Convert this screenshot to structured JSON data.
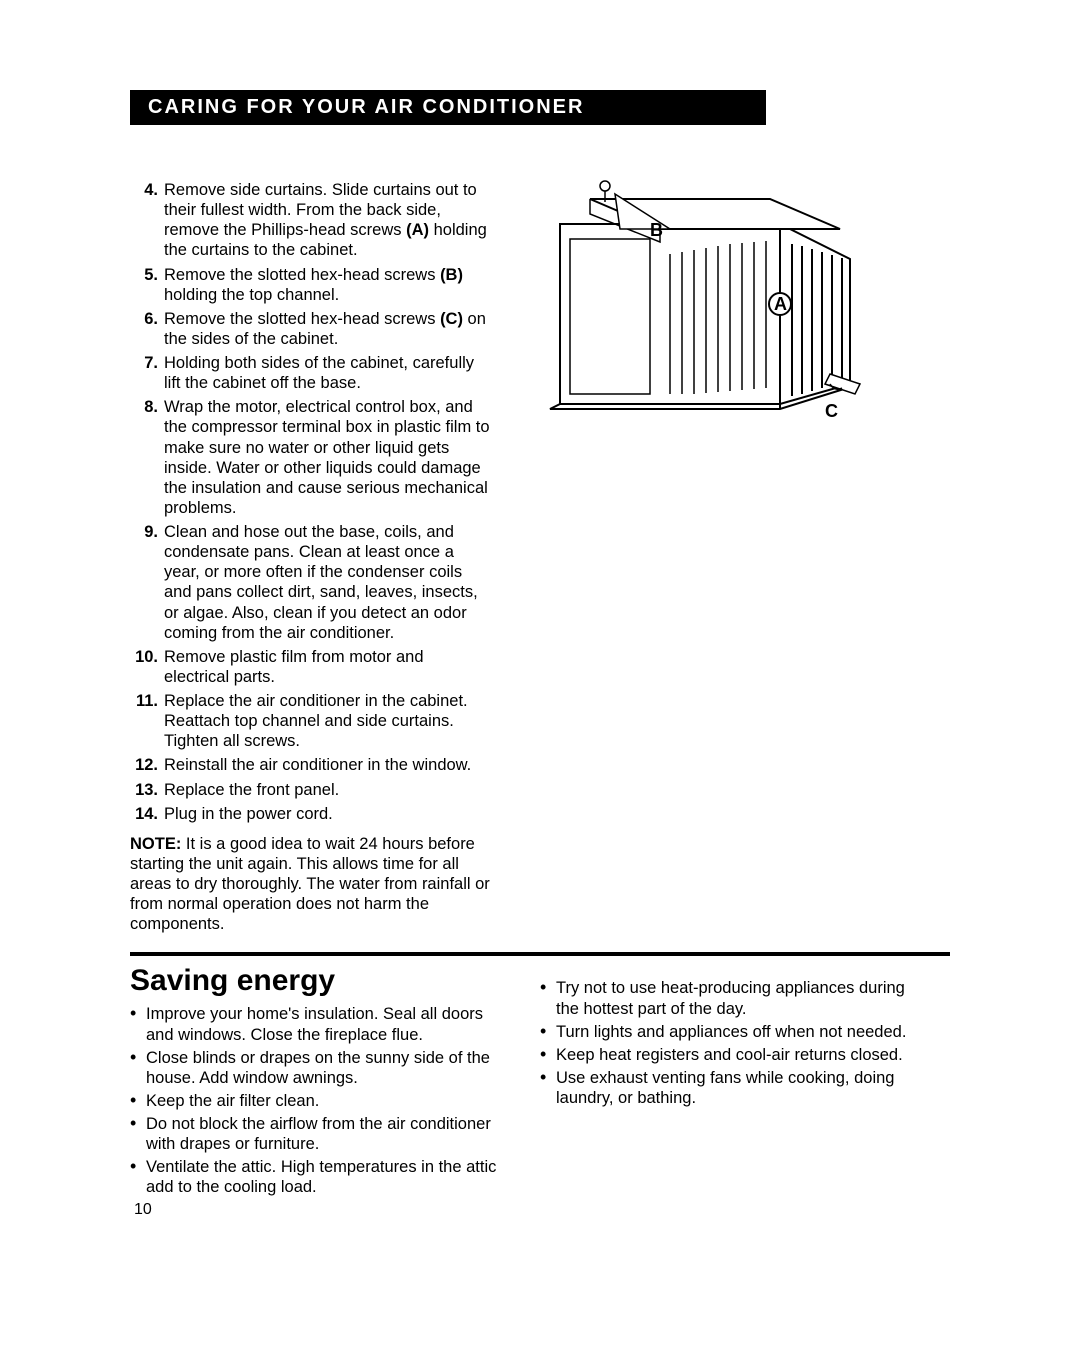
{
  "banner": "CARING FOR YOUR AIR CONDITIONER",
  "steps": [
    {
      "n": "4.",
      "text": "Remove side curtains. Slide curtains out to their fullest width. From the back side, remove the Phillips-head screws (A) holding the curtains to the cabinet.",
      "bold": [
        "(A)"
      ]
    },
    {
      "n": "5.",
      "text": "Remove the slotted hex-head screws (B) holding the top channel.",
      "bold": [
        "(B)"
      ]
    },
    {
      "n": "6.",
      "text": "Remove the slotted hex-head screws (C) on the sides of the cabinet.",
      "bold": [
        "(C)"
      ]
    },
    {
      "n": "7.",
      "text": "Holding both sides of the cabinet, carefully lift the cabinet off the base."
    },
    {
      "n": "8.",
      "text": "Wrap the motor, electrical control box, and the compressor terminal box in plastic film to make sure no water or other liquid gets inside. Water or other liquids could damage the insulation and cause serious mechanical problems."
    },
    {
      "n": "9.",
      "text": "Clean and hose out the base, coils, and condensate pans. Clean at least once a year, or more often if the condenser coils and pans collect dirt, sand, leaves, insects, or algae. Also, clean if you detect an odor coming from the air conditioner."
    },
    {
      "n": "10.",
      "text": "Remove plastic film from motor and electrical parts."
    },
    {
      "n": "11.",
      "text": "Replace the air conditioner in the cabinet. Reattach top channel and side curtains. Tighten all screws."
    },
    {
      "n": "12.",
      "text": "Reinstall the air conditioner in the window."
    },
    {
      "n": "13.",
      "text": "Replace the front panel."
    },
    {
      "n": "14.",
      "text": "Plug in the power cord."
    }
  ],
  "note_label": "NOTE:",
  "note_text": " It is a good idea to wait 24 hours before starting the unit again. This allows time for all areas to dry thoroughly. The water from rainfall or from normal operation does not harm the components.",
  "saving_title": "Saving energy",
  "saving_left": [
    "Improve your home's insulation. Seal all doors and windows. Close the fireplace flue.",
    "Close blinds or drapes on the sunny side of the house. Add window awnings.",
    "Keep the air filter clean.",
    "Do not block the airflow from the air conditioner with drapes or furniture.",
    "Ventilate the attic. High temperatures in the attic add to the cooling load."
  ],
  "saving_right": [
    "Try not to use heat-producing appliances during the hottest part of the day.",
    "Turn lights and appliances off when not needed.",
    "Keep heat registers and cool-air returns closed.",
    "Use exhaust venting fans while cooking, doing laundry, or bathing."
  ],
  "page_number": "10",
  "diagram": {
    "label_A": "A",
    "label_B": "B",
    "label_C": "C"
  }
}
